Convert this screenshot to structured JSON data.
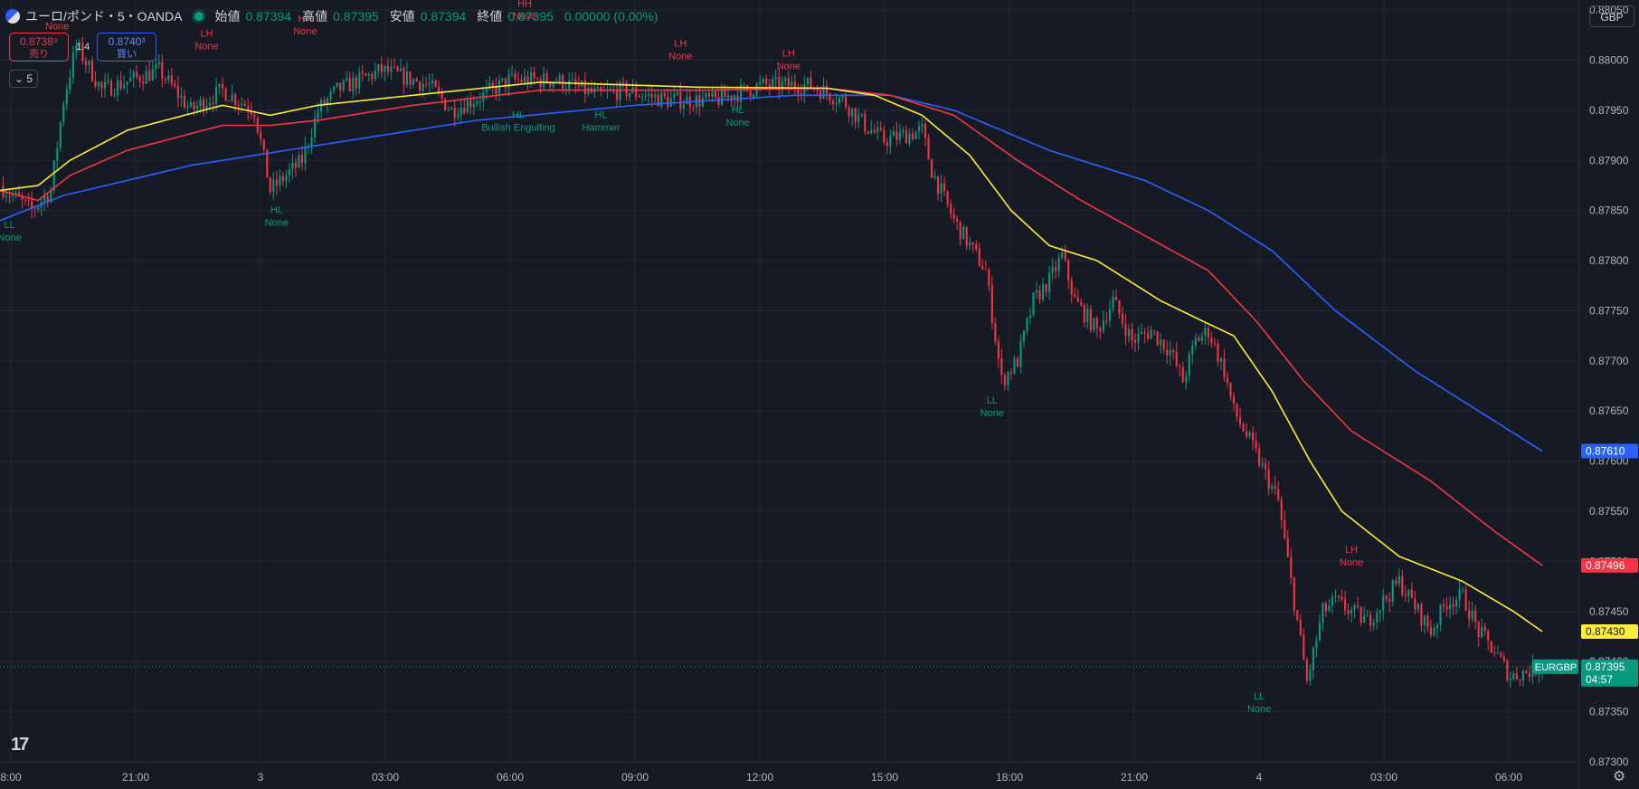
{
  "header": {
    "symbol": "ユーロ/ポンド・5・OANDA",
    "open_label": "始値",
    "open_value": "0.87394",
    "high_label": "高値",
    "high_value": "0.87395",
    "low_label": "安値",
    "low_value": "0.87394",
    "close_label": "終値",
    "close_value": "0.87395",
    "change": "0.00000 (0.00%)"
  },
  "trade": {
    "sell_price": "0.8738⁹",
    "sell_label": "売り",
    "spread": "1.4",
    "buy_price": "0.8740³",
    "buy_label": "買い"
  },
  "indicator_toggle": "5",
  "currency_button": "GBP",
  "logo": "17",
  "settings_icon": "gear-icon",
  "colors": {
    "background": "#161a25",
    "up": "#089981",
    "down": "#f23645",
    "ma_fast": "#ffeb3b",
    "ma_mid": "#f23645",
    "ma_slow": "#2962ff"
  },
  "chart_data": {
    "type": "candlestick",
    "x_ticks": [
      "8:00",
      "21:00",
      "3",
      "03:00",
      "06:00",
      "09:00",
      "12:00",
      "15:00",
      "18:00",
      "21:00",
      "4",
      "03:00",
      "06:00"
    ],
    "y_ticks": [
      "0.88050",
      "0.88000",
      "0.87950",
      "0.87900",
      "0.87850",
      "0.87800",
      "0.87750",
      "0.87700",
      "0.87650",
      "0.87600",
      "0.87550",
      "0.87500",
      "0.87450",
      "0.87400",
      "0.87350",
      "0.87300"
    ],
    "ylim": [
      0.873,
      0.8806
    ],
    "price_path": [
      [
        0,
        0.87875
      ],
      [
        10,
        0.8785
      ],
      [
        16,
        0.8787
      ],
      [
        20,
        0.8796
      ],
      [
        24,
        0.88015
      ],
      [
        32,
        0.8797
      ],
      [
        50,
        0.8799
      ],
      [
        60,
        0.8795
      ],
      [
        70,
        0.8797
      ],
      [
        80,
        0.8795
      ],
      [
        85,
        0.8787
      ],
      [
        95,
        0.879
      ],
      [
        100,
        0.8795
      ],
      [
        106,
        0.8797
      ],
      [
        120,
        0.8799
      ],
      [
        135,
        0.87975
      ],
      [
        142,
        0.8795
      ],
      [
        152,
        0.87965
      ],
      [
        160,
        0.8798
      ],
      [
        175,
        0.8798
      ],
      [
        188,
        0.87965
      ],
      [
        196,
        0.8797
      ],
      [
        210,
        0.8796
      ],
      [
        225,
        0.8796
      ],
      [
        240,
        0.87975
      ],
      [
        255,
        0.87975
      ],
      [
        265,
        0.8796
      ],
      [
        272,
        0.87935
      ],
      [
        278,
        0.8792
      ],
      [
        290,
        0.8793
      ],
      [
        293,
        0.8789
      ],
      [
        300,
        0.8784
      ],
      [
        310,
        0.8779
      ],
      [
        315,
        0.8768
      ],
      [
        320,
        0.877
      ],
      [
        325,
        0.8776
      ],
      [
        330,
        0.8778
      ],
      [
        334,
        0.87805
      ],
      [
        338,
        0.8776
      ],
      [
        345,
        0.8773
      ],
      [
        350,
        0.8776
      ],
      [
        356,
        0.8772
      ],
      [
        362,
        0.8773
      ],
      [
        368,
        0.8771
      ],
      [
        372,
        0.8768
      ],
      [
        376,
        0.8772
      ],
      [
        380,
        0.8773
      ],
      [
        385,
        0.8769
      ],
      [
        388,
        0.8765
      ],
      [
        393,
        0.8762
      ],
      [
        396,
        0.876
      ],
      [
        402,
        0.8756
      ],
      [
        407,
        0.8746
      ],
      [
        411,
        0.8738
      ],
      [
        416,
        0.8745
      ],
      [
        420,
        0.8746
      ],
      [
        430,
        0.8744
      ],
      [
        440,
        0.8748
      ],
      [
        450,
        0.8743
      ],
      [
        455,
        0.8746
      ],
      [
        460,
        0.87465
      ],
      [
        465,
        0.8743
      ],
      [
        470,
        0.8741
      ],
      [
        475,
        0.87385
      ],
      [
        480,
        0.8739
      ],
      [
        485,
        0.87395
      ]
    ],
    "ma_fast_path": [
      [
        0,
        0.8787
      ],
      [
        12,
        0.87875
      ],
      [
        22,
        0.879
      ],
      [
        40,
        0.8793
      ],
      [
        70,
        0.87955
      ],
      [
        85,
        0.87945
      ],
      [
        100,
        0.87955
      ],
      [
        130,
        0.87965
      ],
      [
        170,
        0.87978
      ],
      [
        220,
        0.87973
      ],
      [
        260,
        0.87972
      ],
      [
        275,
        0.87965
      ],
      [
        290,
        0.87945
      ],
      [
        305,
        0.87905
      ],
      [
        318,
        0.8785
      ],
      [
        330,
        0.87815
      ],
      [
        345,
        0.878
      ],
      [
        365,
        0.8776
      ],
      [
        378,
        0.8774
      ],
      [
        388,
        0.87725
      ],
      [
        400,
        0.8767
      ],
      [
        412,
        0.876
      ],
      [
        422,
        0.8755
      ],
      [
        440,
        0.87505
      ],
      [
        460,
        0.8748
      ],
      [
        476,
        0.8745
      ],
      [
        485,
        0.8743
      ]
    ],
    "ma_mid_path": [
      [
        0,
        0.8787
      ],
      [
        12,
        0.8786
      ],
      [
        22,
        0.87885
      ],
      [
        40,
        0.8791
      ],
      [
        70,
        0.87935
      ],
      [
        85,
        0.87935
      ],
      [
        100,
        0.8794
      ],
      [
        130,
        0.87955
      ],
      [
        170,
        0.8797
      ],
      [
        220,
        0.8797
      ],
      [
        260,
        0.87972
      ],
      [
        280,
        0.87965
      ],
      [
        300,
        0.87945
      ],
      [
        320,
        0.879
      ],
      [
        340,
        0.8786
      ],
      [
        360,
        0.87825
      ],
      [
        380,
        0.8779
      ],
      [
        395,
        0.8774
      ],
      [
        410,
        0.8768
      ],
      [
        425,
        0.8763
      ],
      [
        450,
        0.8758
      ],
      [
        470,
        0.8753
      ],
      [
        485,
        0.87496
      ]
    ],
    "ma_slow_path": [
      [
        0,
        0.8784
      ],
      [
        20,
        0.87865
      ],
      [
        60,
        0.87895
      ],
      [
        100,
        0.87915
      ],
      [
        150,
        0.8794
      ],
      [
        200,
        0.87955
      ],
      [
        250,
        0.87965
      ],
      [
        280,
        0.87965
      ],
      [
        300,
        0.8795
      ],
      [
        330,
        0.8791
      ],
      [
        360,
        0.8788
      ],
      [
        380,
        0.8785
      ],
      [
        400,
        0.8781
      ],
      [
        420,
        0.8775
      ],
      [
        445,
        0.8769
      ],
      [
        470,
        0.8764
      ],
      [
        485,
        0.8761
      ]
    ],
    "annotations": [
      {
        "t": 3,
        "price": 0.87845,
        "pos": "below",
        "color": "up",
        "lines": [
          "LL",
          "None"
        ]
      },
      {
        "t": 18,
        "price": 0.8802,
        "pos": "above",
        "color": "down",
        "lines": [
          "",
          "None"
        ]
      },
      {
        "t": 65,
        "price": 0.88,
        "pos": "above",
        "color": "down",
        "lines": [
          "LH",
          "None"
        ]
      },
      {
        "t": 87,
        "price": 0.8786,
        "pos": "below",
        "color": "up",
        "lines": [
          "HL",
          "None"
        ]
      },
      {
        "t": 96,
        "price": 0.88015,
        "pos": "above",
        "color": "down",
        "lines": [
          "HH",
          "None"
        ]
      },
      {
        "t": 165,
        "price": 0.8803,
        "pos": "above",
        "color": "down",
        "lines": [
          "HH",
          "None"
        ]
      },
      {
        "t": 163,
        "price": 0.87955,
        "pos": "below",
        "color": "up",
        "lines": [
          "HL",
          "Bullish Engulfing"
        ]
      },
      {
        "t": 189,
        "price": 0.87955,
        "pos": "below",
        "color": "up",
        "lines": [
          "HL",
          "Hammer"
        ]
      },
      {
        "t": 214,
        "price": 0.8799,
        "pos": "above",
        "color": "down",
        "lines": [
          "LH",
          "None"
        ]
      },
      {
        "t": 232,
        "price": 0.8796,
        "pos": "below",
        "color": "up",
        "lines": [
          "HL",
          "None"
        ]
      },
      {
        "t": 248,
        "price": 0.8798,
        "pos": "above",
        "color": "down",
        "lines": [
          "LH",
          "None"
        ]
      },
      {
        "t": 312,
        "price": 0.8767,
        "pos": "below",
        "color": "up",
        "lines": [
          "LL",
          "None"
        ]
      },
      {
        "t": 425,
        "price": 0.87485,
        "pos": "above",
        "color": "down",
        "lines": [
          "LH",
          "None"
        ]
      },
      {
        "t": 396,
        "price": 0.87375,
        "pos": "below",
        "color": "up",
        "lines": [
          "LL",
          "None"
        ]
      }
    ],
    "price_tags": [
      {
        "price": 0.8761,
        "text": "0.87610",
        "color": "#2962ff",
        "text_color": "#ffffff"
      },
      {
        "price": 0.87496,
        "text": "0.87496",
        "color": "#f23645",
        "text_color": "#ffffff"
      },
      {
        "price": 0.8743,
        "text": "0.87430",
        "color": "#ffeb3b",
        "text_color": "#131722"
      },
      {
        "price": 0.87395,
        "text": "0.87395",
        "color": "#089981",
        "text_color": "#ffffff",
        "sub": "04:57",
        "symbol": "EURGBP"
      }
    ],
    "last_price": 0.87395
  }
}
